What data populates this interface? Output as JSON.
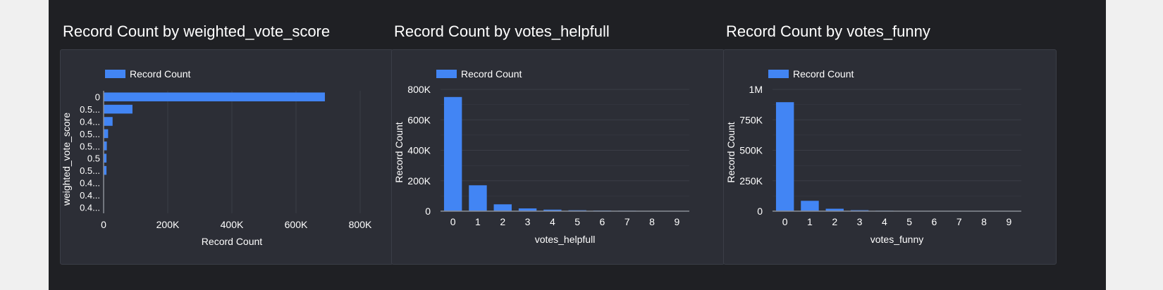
{
  "colors": {
    "bar": "#4285f4",
    "grid": "#3a3d46",
    "axis": "#8a8d96",
    "text": "#ffffff"
  },
  "charts": [
    {
      "title": "Record Count by weighted_vote_score",
      "legend": "Record Count",
      "chart_data": {
        "type": "bar",
        "orientation": "horizontal",
        "categories": [
          "0",
          "0.5...",
          "0.4...",
          "0.5...",
          "0.5...",
          "0.5",
          "0.5...",
          "0.4...",
          "0.4...",
          "0.4..."
        ],
        "values": [
          690000,
          90000,
          28000,
          14000,
          10000,
          9000,
          9000,
          0,
          0,
          0
        ],
        "xlabel": "Record Count",
        "ylabel": "weighted_vote_score",
        "xlim": [
          0,
          800000
        ],
        "xticks": [
          0,
          200000,
          400000,
          600000,
          800000
        ],
        "xtick_labels": [
          "0",
          "200K",
          "400K",
          "600K",
          "800K"
        ],
        "grid": true,
        "legend_position": "top-left"
      }
    },
    {
      "title": "Record Count by votes_helpfull",
      "legend": "Record Count",
      "chart_data": {
        "type": "bar",
        "orientation": "vertical",
        "categories": [
          "0",
          "1",
          "2",
          "3",
          "4",
          "5",
          "6",
          "7",
          "8",
          "9"
        ],
        "values": [
          750000,
          170000,
          45000,
          18000,
          10000,
          6000,
          4000,
          3000,
          2000,
          1500
        ],
        "xlabel": "votes_helpfull",
        "ylabel": "Record Count",
        "ylim": [
          0,
          800000
        ],
        "yticks": [
          0,
          200000,
          400000,
          600000,
          800000
        ],
        "ytick_labels": [
          "0",
          "200K",
          "400K",
          "600K",
          "800K"
        ],
        "grid": true,
        "legend_position": "top-left"
      }
    },
    {
      "title": "Record Count by votes_funny",
      "legend": "Record Count",
      "chart_data": {
        "type": "bar",
        "orientation": "vertical",
        "categories": [
          "0",
          "1",
          "2",
          "3",
          "4",
          "5",
          "6",
          "7",
          "8",
          "9"
        ],
        "values": [
          895000,
          85000,
          20000,
          8000,
          4000,
          2000,
          1500,
          1000,
          800,
          500
        ],
        "xlabel": "votes_funny",
        "ylabel": "Record Count",
        "ylim": [
          0,
          1000000
        ],
        "yticks": [
          0,
          250000,
          500000,
          750000,
          1000000
        ],
        "ytick_labels": [
          "0",
          "250K",
          "500K",
          "750K",
          "1M"
        ],
        "grid": true,
        "legend_position": "top-left"
      }
    }
  ]
}
